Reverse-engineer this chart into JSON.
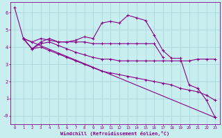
{
  "xlabel": "Windchill (Refroidissement éolien,°C)",
  "bg_color": "#c8eef0",
  "grid_color": "#aad8dc",
  "line_color": "#880088",
  "xlim": [
    -0.5,
    23.5
  ],
  "ylim": [
    -0.5,
    6.6
  ],
  "yticks": [
    0,
    1,
    2,
    3,
    4,
    5,
    6
  ],
  "ytick_labels": [
    "-0",
    "1",
    "2",
    "3",
    "4",
    "5",
    "6"
  ],
  "xticks": [
    0,
    1,
    2,
    3,
    4,
    5,
    6,
    7,
    8,
    9,
    10,
    11,
    12,
    13,
    14,
    15,
    16,
    17,
    18,
    19,
    20,
    21,
    22,
    23
  ],
  "line1_x": [
    0,
    1,
    2,
    3,
    4,
    5,
    6,
    7,
    8,
    9,
    10,
    11,
    12,
    13,
    14,
    15,
    16,
    17,
    18,
    19,
    20,
    21,
    22,
    23
  ],
  "line1_y": [
    6.3,
    4.5,
    4.3,
    4.5,
    4.4,
    4.3,
    4.3,
    4.4,
    4.6,
    4.5,
    5.4,
    5.5,
    5.4,
    5.85,
    5.7,
    5.55,
    4.7,
    3.8,
    3.35,
    3.35,
    1.8,
    1.6,
    0.9,
    -0.1
  ],
  "line2_x": [
    1,
    2,
    3,
    4,
    5,
    6,
    7,
    8,
    9,
    10,
    11,
    12,
    13,
    14,
    15,
    16,
    17
  ],
  "line2_y": [
    4.5,
    3.9,
    4.3,
    4.5,
    4.3,
    4.3,
    4.3,
    4.3,
    4.2,
    4.2,
    4.2,
    4.2,
    4.2,
    4.2,
    4.2,
    4.2,
    3.4
  ],
  "line3_x": [
    1,
    2,
    3,
    4,
    5,
    6,
    7,
    8,
    9,
    10,
    11,
    12,
    13,
    14,
    15,
    16,
    17,
    18,
    19,
    20,
    21,
    22,
    23
  ],
  "line3_y": [
    4.5,
    3.9,
    4.2,
    4.3,
    4.1,
    3.9,
    3.7,
    3.55,
    3.4,
    3.3,
    3.3,
    3.2,
    3.2,
    3.2,
    3.2,
    3.2,
    3.2,
    3.2,
    3.2,
    3.2,
    3.3,
    3.3,
    3.3
  ],
  "line4_x": [
    1,
    2,
    3,
    4,
    5,
    6,
    7,
    8,
    9,
    10,
    11,
    12,
    13,
    14,
    15,
    16,
    17,
    18,
    19,
    20,
    21,
    22,
    23
  ],
  "line4_y": [
    4.5,
    3.9,
    4.0,
    3.8,
    3.6,
    3.4,
    3.2,
    3.0,
    2.8,
    2.6,
    2.5,
    2.4,
    2.3,
    2.2,
    2.1,
    2.0,
    1.9,
    1.8,
    1.6,
    1.5,
    1.4,
    1.2,
    0.9
  ],
  "line5_x": [
    1,
    23
  ],
  "line5_y": [
    4.5,
    -0.1
  ],
  "marker": "+",
  "markersize": 3.0,
  "linewidth": 0.8
}
